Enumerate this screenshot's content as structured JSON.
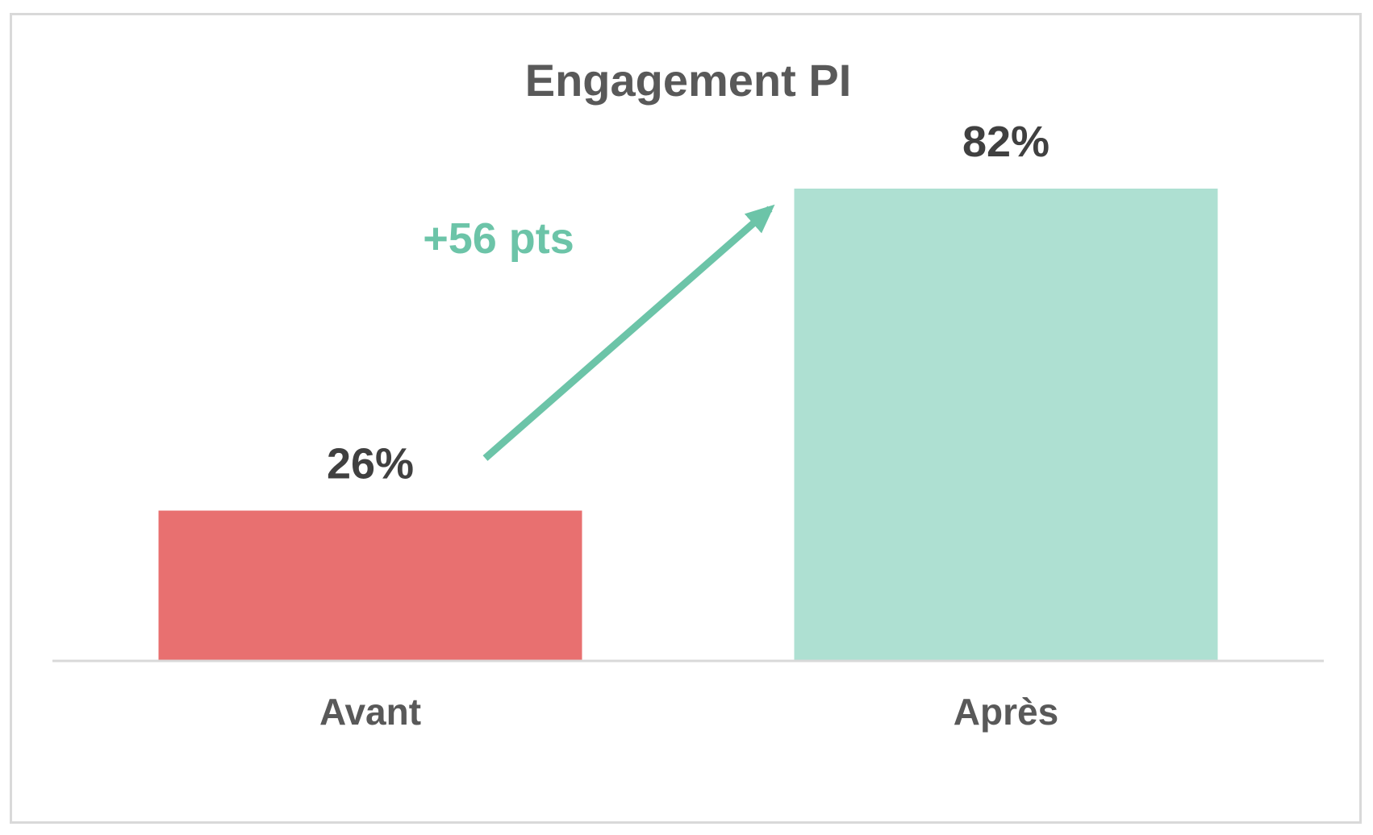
{
  "chart_data": {
    "type": "bar",
    "title": "Engagement PI",
    "categories": [
      "Avant",
      "Après"
    ],
    "values": [
      26,
      82
    ],
    "value_labels": [
      "26%",
      "82%"
    ],
    "unit": "%",
    "ylim": [
      0,
      100
    ],
    "grid": false,
    "legend": "none",
    "bar_colors": [
      "#e87070",
      "#aee0d2"
    ],
    "annotation": {
      "text": "+56 pts",
      "type": "arrow",
      "from_category": "Avant",
      "to_category": "Après",
      "color": "#6cc4a8"
    }
  },
  "colors": {
    "frame_border": "#d9d9d9",
    "axis_line": "#d9d9d9",
    "title_text": "#595959",
    "value_text": "#404040",
    "category_text": "#595959"
  }
}
